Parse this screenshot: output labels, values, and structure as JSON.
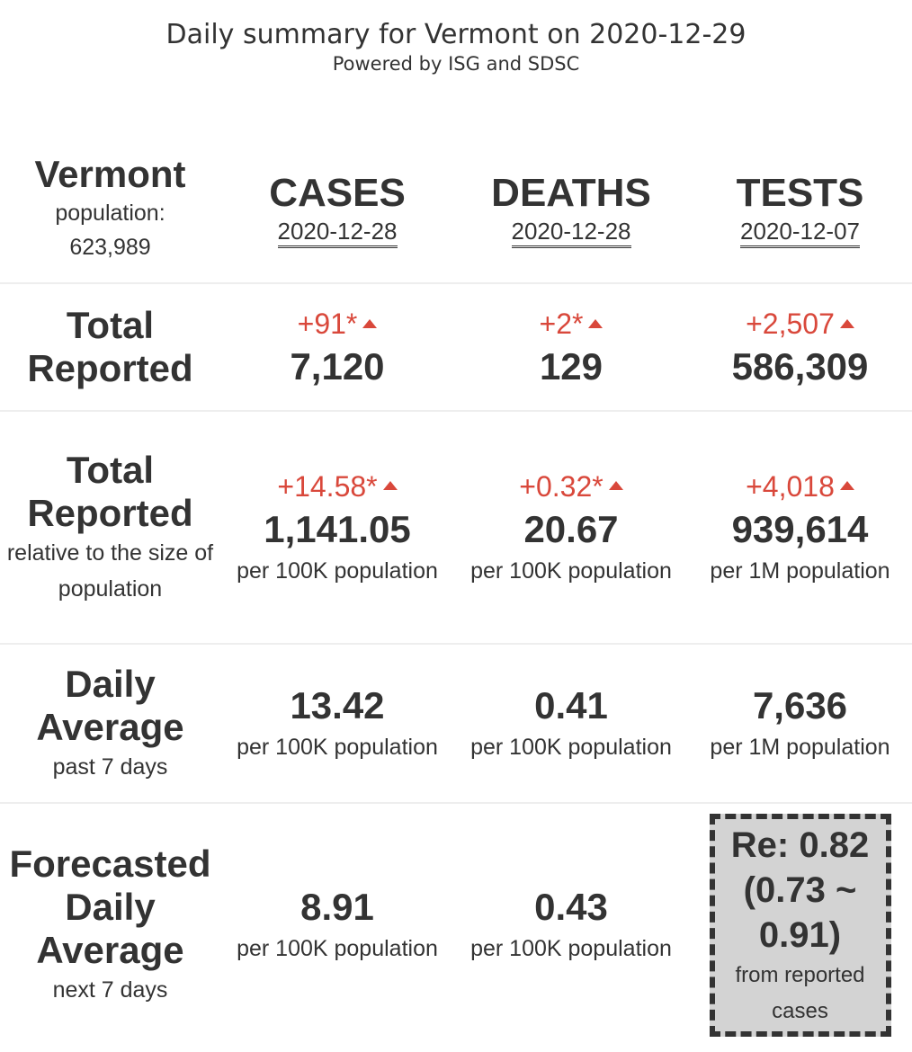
{
  "header": {
    "title": "Daily summary for Vermont on 2020-12-29",
    "subtitle": "Powered by ISG and SDSC"
  },
  "region": {
    "name": "Vermont",
    "population_label": "population:",
    "population_value": "623,989"
  },
  "columns": [
    {
      "title": "CASES",
      "date": "2020-12-28"
    },
    {
      "title": "DEATHS",
      "date": "2020-12-28"
    },
    {
      "title": "TESTS",
      "date": "2020-12-07"
    }
  ],
  "rows": {
    "total": {
      "label": "Total Reported",
      "cells": [
        {
          "delta": "+91*",
          "value": "7,120"
        },
        {
          "delta": "+2*",
          "value": "129"
        },
        {
          "delta": "+2,507",
          "value": "586,309"
        }
      ]
    },
    "relative": {
      "label": "Total Reported",
      "sub": "relative to the size of population",
      "cells": [
        {
          "delta": "+14.58*",
          "value": "1,141.05",
          "unit": "per 100K population"
        },
        {
          "delta": "+0.32*",
          "value": "20.67",
          "unit": "per 100K population"
        },
        {
          "delta": "+4,018",
          "value": "939,614",
          "unit": "per 1M population"
        }
      ]
    },
    "daily": {
      "label": "Daily Average",
      "sub": "past 7 days",
      "cells": [
        {
          "value": "13.42",
          "unit": "per 100K population"
        },
        {
          "value": "0.41",
          "unit": "per 100K population"
        },
        {
          "value": "7,636",
          "unit": "per 1M population"
        }
      ]
    },
    "forecast": {
      "label": "Forecasted Daily Average",
      "sub": "next 7 days",
      "cells": [
        {
          "value": "8.91",
          "unit": "per 100K population"
        },
        {
          "value": "0.43",
          "unit": "per 100K population"
        }
      ],
      "re": {
        "value": "Re: 0.82 (0.73 ~ 0.91)",
        "sub": "from reported cases"
      }
    }
  },
  "colors": {
    "text": "#333333",
    "increase": "#d9483b",
    "re_box_background": "#d3d3d3",
    "row_divider": "#eeeeee"
  },
  "icons": {
    "increase": "triangle-up-icon"
  }
}
